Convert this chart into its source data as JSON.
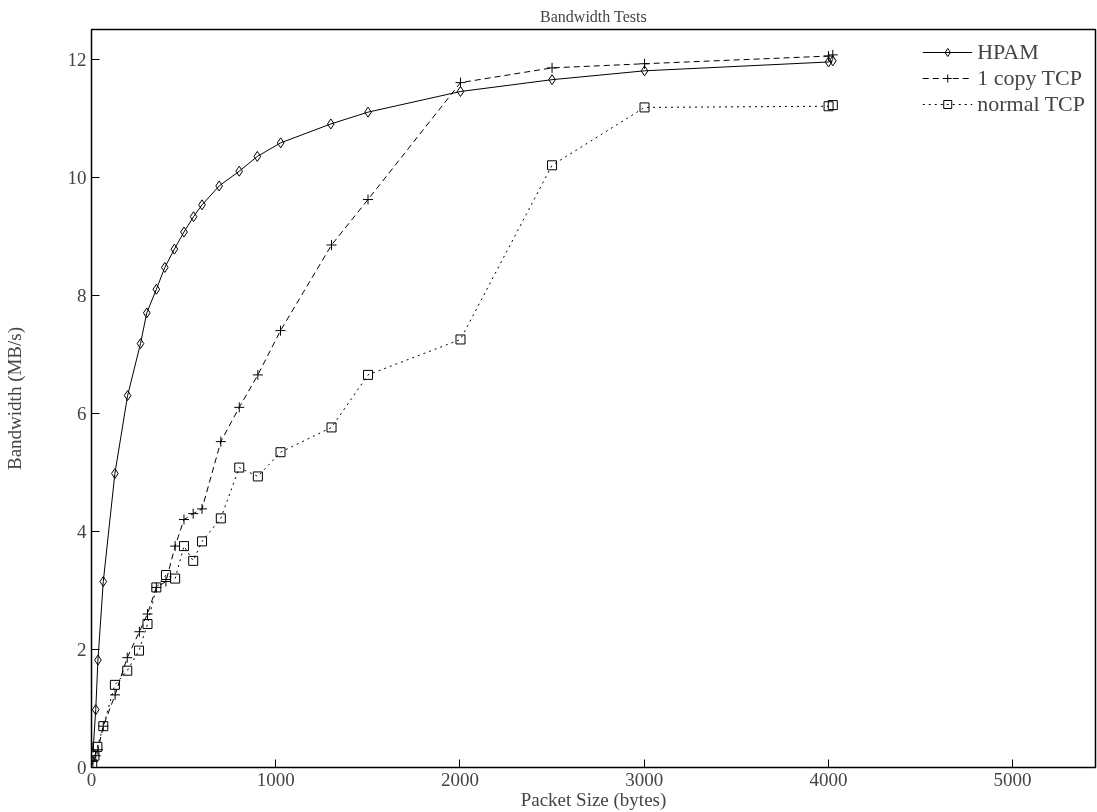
{
  "chart_data": {
    "type": "line",
    "title": "Bandwidth Tests",
    "xlabel": "Packet Size (bytes)",
    "ylabel": "Bandwidth (MB/s)",
    "xlim": [
      0,
      5450
    ],
    "ylim": [
      0,
      12.5
    ],
    "xticks": [
      0,
      1000,
      2000,
      3000,
      4000,
      5000
    ],
    "yticks": [
      0,
      2,
      4,
      6,
      8,
      10,
      12
    ],
    "grid": false,
    "legend": "top right",
    "series": [
      {
        "name": "HPAM",
        "color": "#000000",
        "marker": "diamond",
        "line_style": "solid",
        "x": [
          8,
          23,
          35,
          64,
          127,
          196,
          266,
          300,
          352,
          398,
          450,
          502,
          554,
          600,
          693,
          802,
          900,
          1027,
          1299,
          1501,
          2003,
          2500,
          3002,
          4001,
          4024
        ],
        "values": [
          0.25,
          0.98,
          1.82,
          3.15,
          4.98,
          6.3,
          7.18,
          7.7,
          8.1,
          8.47,
          8.78,
          9.07,
          9.33,
          9.53,
          9.85,
          10.1,
          10.35,
          10.58,
          10.9,
          11.1,
          11.45,
          11.65,
          11.8,
          11.95,
          11.97
        ]
      },
      {
        "name": "1 copy TCP",
        "color": "#000000",
        "marker": "cross",
        "line_style": "dashed",
        "x": [
          8,
          23,
          35,
          64,
          128,
          194,
          260,
          304,
          352,
          404,
          454,
          502,
          552,
          600,
          702,
          802,
          903,
          1026,
          1303,
          1501,
          2003,
          2500,
          3002,
          4001,
          4024
        ],
        "values": [
          0.1,
          0.2,
          0.3,
          0.7,
          1.23,
          1.86,
          2.3,
          2.6,
          3.05,
          3.15,
          3.75,
          4.2,
          4.3,
          4.38,
          5.52,
          6.1,
          6.65,
          7.4,
          8.85,
          9.62,
          11.6,
          11.85,
          11.92,
          12.05,
          12.07
        ]
      },
      {
        "name": "normal TCP",
        "color": "#000000",
        "marker": "square",
        "line_style": "dotted",
        "x": [
          4,
          16,
          32,
          64,
          127,
          194,
          258,
          304,
          352,
          404,
          454,
          502,
          552,
          600,
          702,
          802,
          903,
          1026,
          1303,
          1501,
          2003,
          2500,
          3002,
          4001,
          4024
        ],
        "values": [
          0.05,
          0.2,
          0.35,
          0.7,
          1.4,
          1.64,
          1.98,
          2.43,
          3.05,
          3.26,
          3.2,
          3.75,
          3.5,
          3.83,
          4.22,
          5.08,
          4.93,
          5.34,
          5.76,
          6.65,
          7.25,
          10.2,
          11.18,
          11.2,
          11.22
        ]
      }
    ]
  }
}
